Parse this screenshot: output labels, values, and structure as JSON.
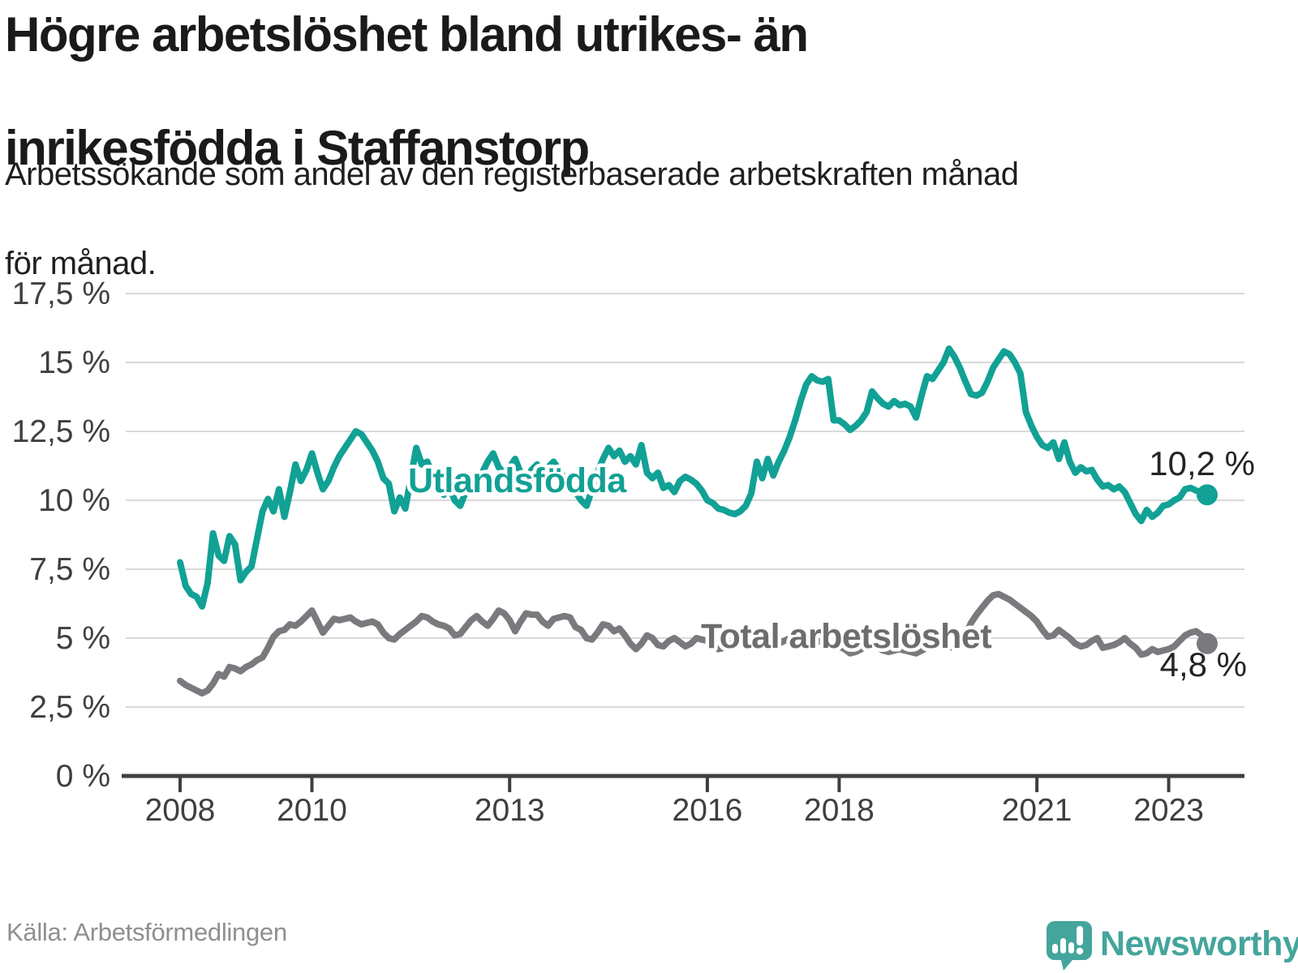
{
  "header": {
    "title_line1": "Högre arbetslöshet bland utrikes- än",
    "title_line2": "inrikesfödda i Staffanstorp",
    "subtitle_line1": "Arbetssökande som andel av den registerbaserade arbetskraften månad",
    "subtitle_line2": "för månad."
  },
  "footer": {
    "source": "Källa: Arbetsförmedlingen",
    "brand": "Newsworthy"
  },
  "colors": {
    "accent_teal": "#12a195",
    "line_gray": "#7a7a7e",
    "label_gray": "#6d6d70",
    "axis": "#3f3f3f",
    "grid": "#d9d9d9",
    "end_label": "#242424",
    "logo_teal": "#44a59c"
  },
  "chart_data": {
    "type": "line",
    "title": "Högre arbetslöshet bland utrikes- än inrikesfödda i Staffanstorp",
    "subtitle": "Arbetssökande som andel av den registerbaserade arbetskraften månad för månad.",
    "source": "Källa: Arbetsförmedlingen",
    "x_start": "2008-01",
    "x_end": "2023-08",
    "x_interval": "monthly",
    "ylim": [
      0,
      17.5
    ],
    "grid": true,
    "legend_position": "inline-labels",
    "y_ticks": [
      {
        "label": "0 %",
        "value": 0
      },
      {
        "label": "2,5 %",
        "value": 2.5
      },
      {
        "label": "5 %",
        "value": 5
      },
      {
        "label": "7,5 %",
        "value": 7.5
      },
      {
        "label": "10 %",
        "value": 10
      },
      {
        "label": "12,5 %",
        "value": 12.5
      },
      {
        "label": "15 %",
        "value": 15
      },
      {
        "label": "17,5 %",
        "value": 17.5
      }
    ],
    "x_ticks": [
      {
        "label": "2008",
        "month_index": 0
      },
      {
        "label": "2010",
        "month_index": 24
      },
      {
        "label": "2013",
        "month_index": 60
      },
      {
        "label": "2016",
        "month_index": 96
      },
      {
        "label": "2018",
        "month_index": 120
      },
      {
        "label": "2021",
        "month_index": 156
      },
      {
        "label": "2023",
        "month_index": 180
      }
    ],
    "series": [
      {
        "name": "Utlandsfödda",
        "color": "#12a195",
        "end_value": 10.2,
        "end_label": "10,2 %",
        "values": [
          7.75,
          6.9,
          6.6,
          6.5,
          6.15,
          7.0,
          8.8,
          8.0,
          7.8,
          8.7,
          8.4,
          7.1,
          7.4,
          7.6,
          8.6,
          9.6,
          10.05,
          9.6,
          10.4,
          9.4,
          10.3,
          11.3,
          10.7,
          11.1,
          11.7,
          11.0,
          10.4,
          10.7,
          11.2,
          11.6,
          11.9,
          12.2,
          12.5,
          12.4,
          12.1,
          11.8,
          11.4,
          10.8,
          10.6,
          9.6,
          10.1,
          9.7,
          10.8,
          11.9,
          11.3,
          11.4,
          10.9,
          10.5,
          10.2,
          10.5,
          10.0,
          9.8,
          10.3,
          10.8,
          10.5,
          11.0,
          11.4,
          11.7,
          11.2,
          11.0,
          11.2,
          11.5,
          11.0,
          10.7,
          11.1,
          11.3,
          10.9,
          11.2,
          11.4,
          11.1,
          10.8,
          10.5,
          10.3,
          10.0,
          9.8,
          10.4,
          11.0,
          11.5,
          11.9,
          11.6,
          11.8,
          11.4,
          11.6,
          11.3,
          12.0,
          11.0,
          10.8,
          11.0,
          10.45,
          10.55,
          10.3,
          10.7,
          10.85,
          10.75,
          10.6,
          10.35,
          10.0,
          9.9,
          9.7,
          9.65,
          9.55,
          9.5,
          9.6,
          9.8,
          10.25,
          11.4,
          10.8,
          11.5,
          10.9,
          11.4,
          11.8,
          12.3,
          12.9,
          13.6,
          14.2,
          14.5,
          14.35,
          14.3,
          14.4,
          12.9,
          12.9,
          12.75,
          12.55,
          12.7,
          12.9,
          13.2,
          13.95,
          13.7,
          13.5,
          13.4,
          13.6,
          13.45,
          13.5,
          13.4,
          13.0,
          13.8,
          14.5,
          14.4,
          14.7,
          15.0,
          15.5,
          15.2,
          14.8,
          14.3,
          13.85,
          13.8,
          13.9,
          14.3,
          14.8,
          15.1,
          15.4,
          15.3,
          15.0,
          14.6,
          13.2,
          12.7,
          12.3,
          12.0,
          11.9,
          12.1,
          11.5,
          12.1,
          11.4,
          11.0,
          11.2,
          11.05,
          11.1,
          10.75,
          10.5,
          10.55,
          10.4,
          10.5,
          10.3,
          9.9,
          9.5,
          9.25,
          9.65,
          9.4,
          9.55,
          9.8,
          9.85,
          10.0,
          10.1,
          10.4,
          10.45,
          10.35,
          10.3,
          10.2
        ]
      },
      {
        "name": "Total arbetslöshet",
        "color": "#7a7a7e",
        "end_value": 4.8,
        "end_label": "4,8 %",
        "values": [
          3.45,
          3.3,
          3.2,
          3.1,
          3.0,
          3.1,
          3.35,
          3.7,
          3.6,
          3.95,
          3.9,
          3.8,
          3.95,
          4.05,
          4.2,
          4.3,
          4.65,
          5.05,
          5.25,
          5.3,
          5.5,
          5.45,
          5.6,
          5.8,
          6.0,
          5.6,
          5.2,
          5.45,
          5.7,
          5.65,
          5.7,
          5.75,
          5.6,
          5.5,
          5.55,
          5.6,
          5.5,
          5.2,
          5.0,
          4.95,
          5.15,
          5.3,
          5.45,
          5.6,
          5.8,
          5.75,
          5.6,
          5.5,
          5.45,
          5.35,
          5.1,
          5.15,
          5.4,
          5.65,
          5.8,
          5.6,
          5.45,
          5.7,
          6.0,
          5.9,
          5.65,
          5.25,
          5.6,
          5.9,
          5.85,
          5.85,
          5.6,
          5.45,
          5.7,
          5.75,
          5.8,
          5.75,
          5.4,
          5.3,
          5.0,
          4.95,
          5.2,
          5.5,
          5.45,
          5.25,
          5.35,
          5.1,
          4.8,
          4.6,
          4.8,
          5.1,
          5.0,
          4.75,
          4.7,
          4.9,
          5.0,
          4.85,
          4.7,
          4.8,
          5.0,
          4.95,
          4.9,
          4.7,
          4.6,
          4.65,
          4.75,
          4.9,
          5.0,
          4.9,
          4.8,
          4.85,
          4.9,
          4.95,
          4.85,
          4.8,
          4.9,
          5.0,
          4.95,
          5.05,
          5.1,
          5.0,
          4.9,
          4.85,
          4.8,
          4.75,
          4.7,
          4.6,
          4.45,
          4.5,
          4.6,
          4.7,
          4.75,
          4.65,
          4.55,
          4.5,
          4.55,
          4.6,
          4.55,
          4.5,
          4.45,
          4.55,
          4.65,
          4.75,
          4.8,
          4.7,
          4.65,
          4.7,
          4.9,
          5.1,
          5.55,
          5.85,
          6.1,
          6.35,
          6.55,
          6.6,
          6.5,
          6.4,
          6.25,
          6.1,
          5.95,
          5.8,
          5.6,
          5.3,
          5.05,
          5.1,
          5.3,
          5.15,
          5.0,
          4.8,
          4.7,
          4.75,
          4.9,
          5.0,
          4.65,
          4.7,
          4.75,
          4.85,
          5.0,
          4.8,
          4.65,
          4.4,
          4.45,
          4.6,
          4.5,
          4.55,
          4.6,
          4.7,
          4.9,
          5.1,
          5.2,
          5.25,
          5.1,
          4.8
        ]
      }
    ]
  }
}
